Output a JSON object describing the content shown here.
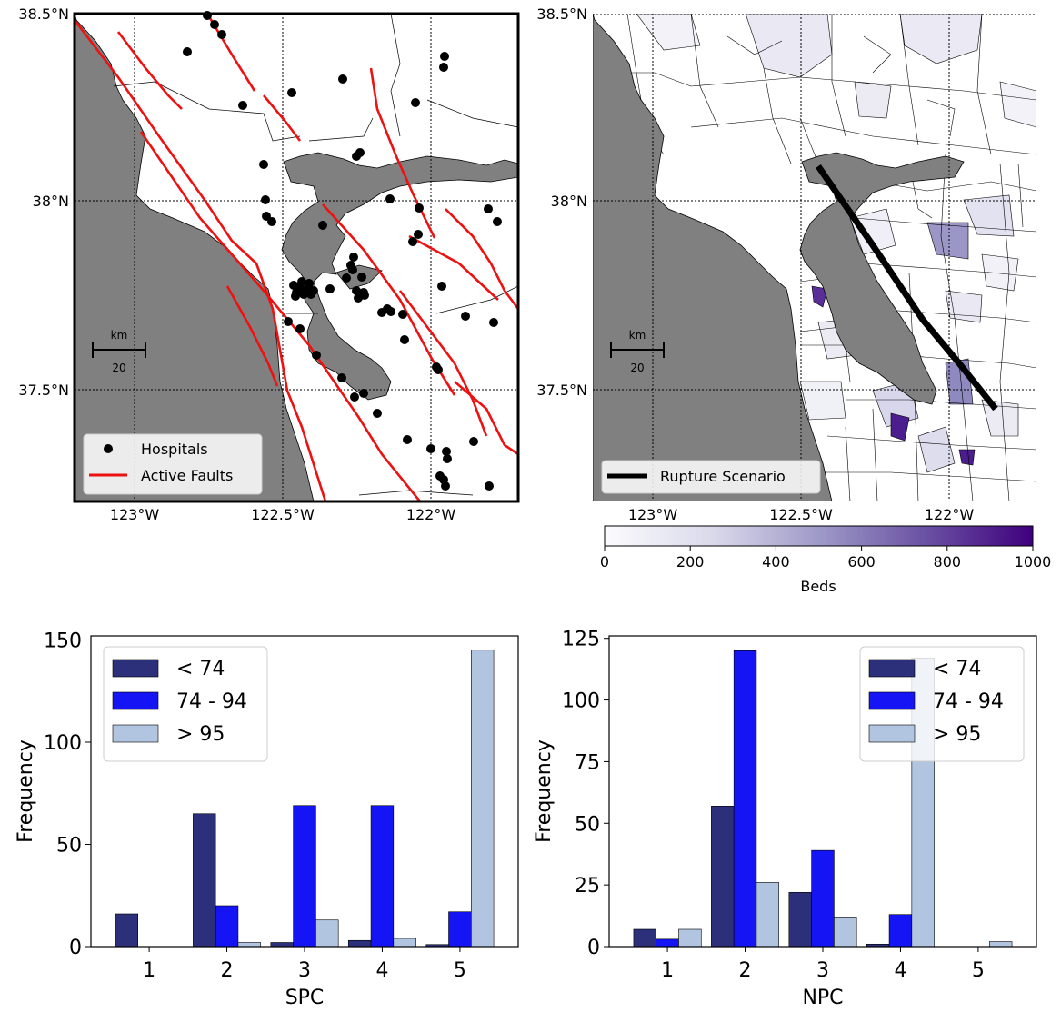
{
  "maps": {
    "left": {
      "lat_ticks": [
        "38.5°N",
        "38°N",
        "37.5°N"
      ],
      "lon_ticks": [
        "123°W",
        "122.5°W",
        "122°W"
      ],
      "scalebar": {
        "unit": "km",
        "value": "20"
      },
      "legend": [
        "Hospitals",
        "Active Faults"
      ]
    },
    "right": {
      "lat_ticks": [
        "38.5°N",
        "38°N",
        "37.5°N"
      ],
      "lon_ticks": [
        "123°W",
        "122.5°W",
        "122°W"
      ],
      "scalebar": {
        "unit": "km",
        "value": "20"
      },
      "legend": [
        "Rupture Scenario"
      ],
      "colorbar": {
        "label": "Beds",
        "ticks": [
          "0",
          "200",
          "400",
          "600",
          "800",
          "1000"
        ],
        "range": [
          0,
          1000
        ],
        "colormap": "Purples"
      }
    }
  },
  "colors": {
    "lt74": "#2c2f7a",
    "b7494": "#1414f5",
    "gt95": "#b2c5e0",
    "water": "#808080",
    "fault": "#ee1111"
  },
  "chart_data": [
    {
      "type": "bar",
      "categories": [
        "1",
        "2",
        "3",
        "4",
        "5"
      ],
      "series": [
        {
          "name": "< 74",
          "values": [
            16,
            65,
            2,
            3,
            1
          ]
        },
        {
          "name": "74 - 94",
          "values": [
            0,
            20,
            69,
            69,
            17
          ]
        },
        {
          "name": "> 95",
          "values": [
            0,
            2,
            13,
            4,
            145
          ]
        }
      ],
      "xlabel": "SPC",
      "ylabel": "Frequency",
      "ylim": [
        0,
        152
      ],
      "yticks": [
        "0",
        "50",
        "100",
        "150"
      ],
      "legend": "top-left"
    },
    {
      "type": "bar",
      "categories": [
        "1",
        "2",
        "3",
        "4",
        "5"
      ],
      "series": [
        {
          "name": "< 74",
          "values": [
            7,
            57,
            22,
            1,
            0
          ]
        },
        {
          "name": "74 - 94",
          "values": [
            3,
            120,
            39,
            13,
            0
          ]
        },
        {
          "name": "> 95",
          "values": [
            7,
            26,
            12,
            117,
            2
          ]
        }
      ],
      "xlabel": "NPC",
      "ylabel": "Frequency",
      "ylim": [
        0,
        126
      ],
      "yticks": [
        "0",
        "25",
        "50",
        "75",
        "100",
        "125"
      ],
      "legend": "top-right"
    }
  ]
}
